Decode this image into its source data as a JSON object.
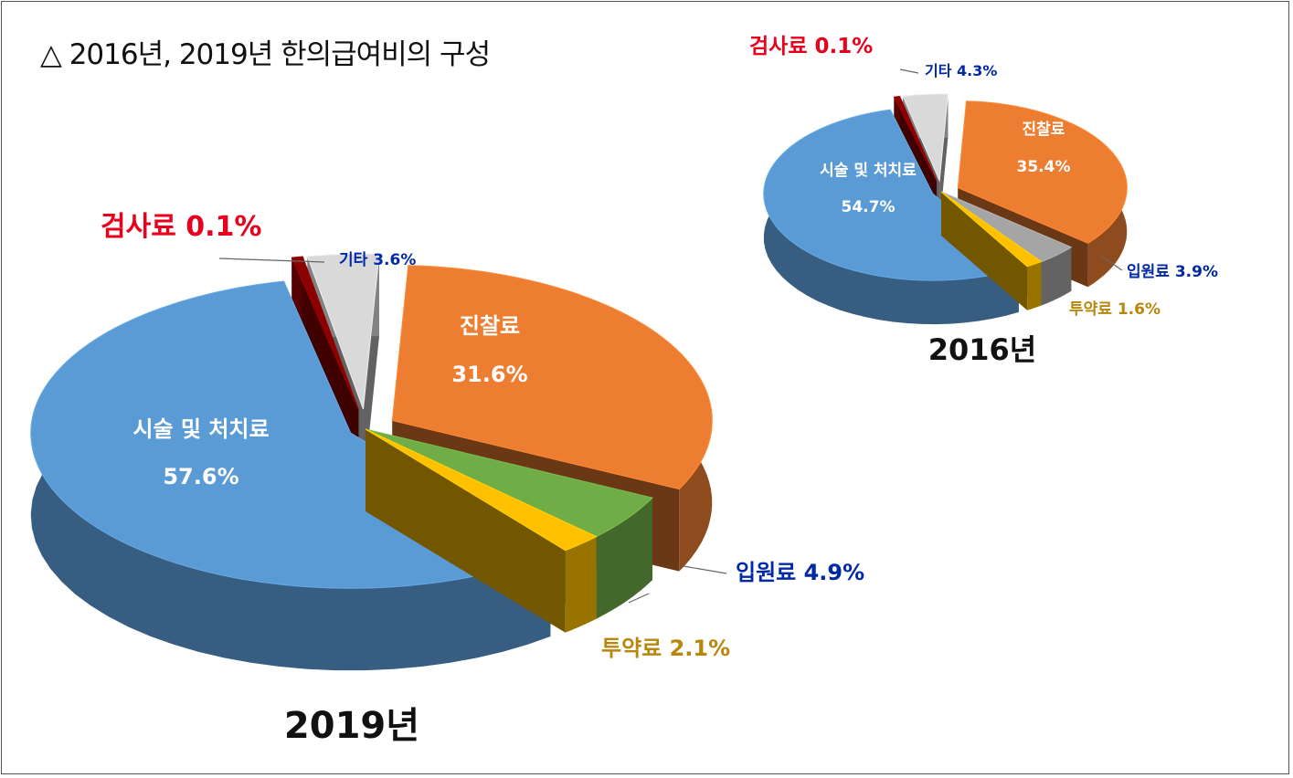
{
  "title": "△ 2016년, 2019년 한의급여비의 구성",
  "colors": {
    "treatment": "#5B9BD5",
    "consult": "#ED7D31",
    "inpatient_2019": "#70AD47",
    "inpatient_2016": "#A5A5A5",
    "drug": "#FFC000",
    "exam": "#8B0000",
    "other": "#D9D9D9",
    "label_white": "#FFFFFF",
    "label_blue": "#002AA5",
    "label_brown": "#B8860B",
    "label_red": "#E8001C"
  },
  "chart_data": [
    {
      "type": "pie",
      "title": "2019년",
      "unit": "%",
      "slices": [
        {
          "key": "consult",
          "name": "진찰료",
          "value": 31.6,
          "label": "진찰료",
          "value_label": "31.6%"
        },
        {
          "key": "inpatient_2019",
          "name": "입원료",
          "value": 4.9,
          "label": "입원료 4.9%"
        },
        {
          "key": "drug",
          "name": "투약료",
          "value": 2.1,
          "label": "투약료 2.1%"
        },
        {
          "key": "treatment",
          "name": "시술 및 처치료",
          "value": 57.6,
          "label": "시술 및 처치료",
          "value_label": "57.6%"
        },
        {
          "key": "exam",
          "name": "검사료",
          "value": 0.1,
          "label": "검사료 0.1%"
        },
        {
          "key": "other",
          "name": "기타",
          "value": 3.6,
          "label": "기타 3.6%"
        }
      ]
    },
    {
      "type": "pie",
      "title": "2016년",
      "unit": "%",
      "slices": [
        {
          "key": "consult",
          "name": "진찰료",
          "value": 35.4,
          "label": "진찰료",
          "value_label": "35.4%"
        },
        {
          "key": "inpatient_2016",
          "name": "입원료",
          "value": 3.9,
          "label": "입원료 3.9%"
        },
        {
          "key": "drug",
          "name": "투약료",
          "value": 1.6,
          "label": "투약료 1.6%"
        },
        {
          "key": "treatment",
          "name": "시술 및 처치료",
          "value": 54.7,
          "label": "시술 및 처치료",
          "value_label": "54.7%"
        },
        {
          "key": "exam",
          "name": "검사료",
          "value": 0.1,
          "label": "검사료 0.1%"
        },
        {
          "key": "other",
          "name": "기타",
          "value": 4.3,
          "label": "기타 4.3%"
        }
      ]
    }
  ]
}
